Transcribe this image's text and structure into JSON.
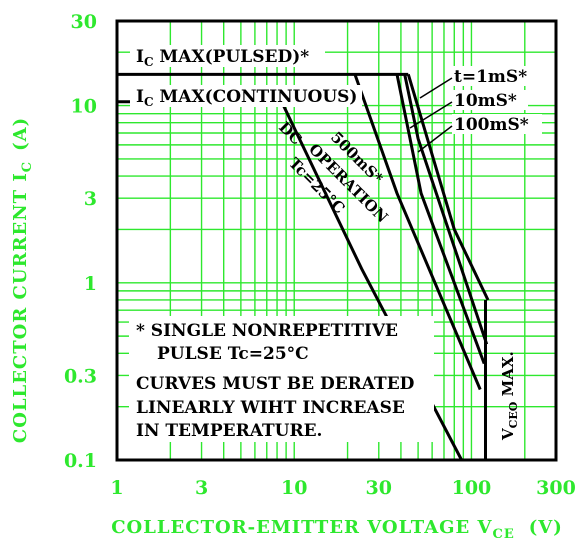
{
  "chart_data": {
    "type": "line",
    "title": "",
    "xscale": "log",
    "yscale": "log",
    "xlim": [
      1,
      300
    ],
    "ylim": [
      0.1,
      30
    ],
    "x_ticks": [
      1,
      3,
      10,
      30,
      100,
      300
    ],
    "x_tick_labels": [
      "1",
      "3",
      "10",
      "30",
      "100",
      "300"
    ],
    "y_ticks": [
      0.1,
      0.3,
      1,
      3,
      10,
      30
    ],
    "y_tick_labels": [
      "0.1",
      "0.3",
      "1",
      "3",
      "10",
      "30"
    ],
    "xlabel": {
      "text": "COLLECTOR-EMITTER VOLTAGE V",
      "sub": "CE",
      "unit": "(V)"
    },
    "ylabel": {
      "text": "COLLECTOR CURRENT I",
      "sub": "C",
      "unit": "(A)"
    },
    "grid": true,
    "colors": {
      "grid": "#2ee82e",
      "curves": "#000000",
      "labels": "#2ee82e"
    },
    "series": [
      {
        "name": "DC OPERATION Tc=25°C",
        "x": [
          8.5,
          24,
          88,
          88
        ],
        "y": [
          10.5,
          1.2,
          0.1,
          0.1
        ]
      },
      {
        "name": "500mS*",
        "x": [
          22,
          38,
          112
        ],
        "y": [
          15,
          3.2,
          0.25
        ]
      },
      {
        "name": "100mS*",
        "x": [
          38,
          52,
          118
        ],
        "y": [
          15,
          3.2,
          0.35
        ]
      },
      {
        "name": "10mS*",
        "x": [
          42,
          50,
          122
        ],
        "y": [
          15,
          6.5,
          0.45
        ]
      },
      {
        "name": "t=1mS*",
        "x": [
          44,
          80,
          124
        ],
        "y": [
          15,
          2.0,
          0.8
        ]
      },
      {
        "name": "VCEO MAX.",
        "x": [
          120,
          120
        ],
        "y": [
          0.1,
          0.8
        ]
      }
    ],
    "limits": [
      {
        "name": "IC MAX(PULSED)*",
        "y": 15,
        "x": [
          1,
          44
        ]
      },
      {
        "name": "IC MAX(CONTINUOUS)",
        "y": 10.5,
        "x": [
          1,
          8.5
        ]
      }
    ]
  },
  "labels": {
    "ic_pulsed_pre": "I",
    "ic_pulsed_sub": "C",
    "ic_pulsed_post": " MAX(PULSED)*",
    "ic_cont_pre": "I",
    "ic_cont_sub": "C",
    "ic_cont_post": " MAX(CONTINUOUS)",
    "t1": "t=1mS*",
    "t10": "10mS*",
    "t100": "100mS*",
    "t500": "500mS*",
    "dc1": "DC",
    "dc2": "OPERATION",
    "dc3": "Tc=25°C",
    "vceo_pre": "V",
    "vceo_sub": "CEO",
    "vceo_post": "  MAX.",
    "note1": "* SINGLE NONREPETITIVE",
    "note2": "PULSE Tc=25°C",
    "note3": "CURVES MUST BE DERATED",
    "note4": "LINEARLY WIHT INCREASE",
    "note5": "IN TEMPERATURE."
  }
}
